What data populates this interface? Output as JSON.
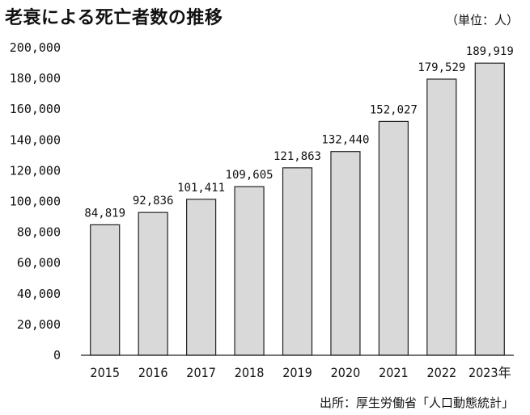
{
  "title": "老衰による死亡者数の推移",
  "unit": "（単位：人）",
  "source": "出所：厚生労働省「人口動態統計」",
  "chart_data": {
    "type": "bar",
    "categories": [
      "2015",
      "2016",
      "2017",
      "2018",
      "2019",
      "2020",
      "2021",
      "2022",
      "2023年"
    ],
    "values": [
      84819,
      92836,
      101411,
      109605,
      121863,
      132440,
      152027,
      179529,
      189919
    ],
    "value_labels": [
      "84,819",
      "92,836",
      "101,411",
      "109,605",
      "121,863",
      "132,440",
      "152,027",
      "179,529",
      "189,919"
    ],
    "y_ticks": [
      "0",
      "20,000",
      "40,000",
      "60,000",
      "80,000",
      "100,000",
      "120,000",
      "140,000",
      "160,000",
      "180,000",
      "200,000"
    ],
    "ylim": [
      0,
      200000
    ],
    "grid": false,
    "bar_color": "#d9d9d9",
    "bar_edge_color": "#222222"
  }
}
